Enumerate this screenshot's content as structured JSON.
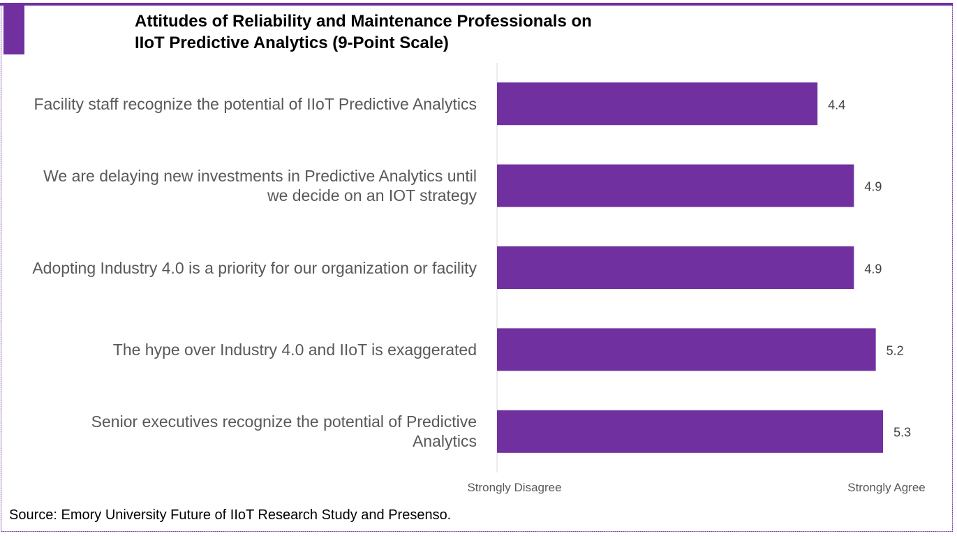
{
  "chart_data": {
    "type": "bar",
    "orientation": "horizontal",
    "title": "Attitudes of Reliability and Maintenance Professionals on IIoT Predictive Analytics (9-Point Scale)",
    "categories": [
      "Facility staff recognize the potential of IIoT Predictive Analytics",
      "We are delaying new investments in Predictive Analytics until we decide on an IOT strategy",
      "Adopting Industry 4.0 is a priority for our organization or facility",
      "The hype over Industry 4.0 and IIoT is exaggerated",
      "Senior executives recognize the potential of Predictive Analytics"
    ],
    "values": [
      4.4,
      4.9,
      4.9,
      5.2,
      5.3
    ],
    "color": "#7030a0",
    "xlim": [
      0,
      6.2
    ],
    "axis_labels": {
      "left": "Strongly Disagree",
      "right": "Strongly Agree"
    },
    "source": "Source:  Emory University Future of IIoT Research Study and Presenso."
  }
}
